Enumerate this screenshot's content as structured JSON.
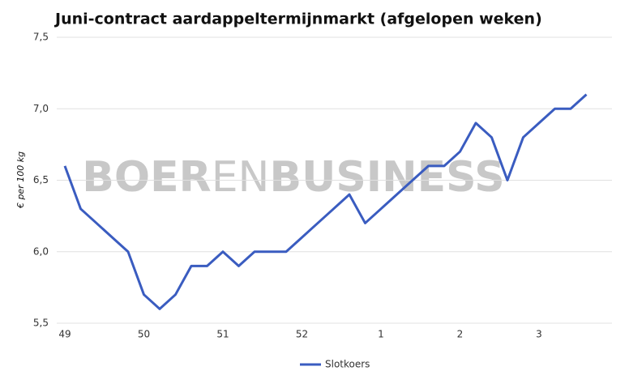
{
  "chart_data": {
    "type": "line",
    "title": "Juni-contract aardappeltermijnmarkt (afgelopen weken)",
    "y_label": "€ per 100 kg",
    "watermark": [
      "BOER",
      "EN",
      "BUSINESS"
    ],
    "categories": [
      "49",
      null,
      null,
      null,
      null,
      "50",
      null,
      null,
      null,
      null,
      "51",
      null,
      null,
      null,
      null,
      "52",
      null,
      null,
      null,
      null,
      "1",
      null,
      null,
      null,
      null,
      "2",
      null,
      null,
      null,
      null,
      "3",
      null,
      null,
      null
    ],
    "series": [
      {
        "name": "Slotkoers",
        "color": "#3a5cc0",
        "values": [
          6.6,
          6.3,
          6.2,
          6.1,
          6.0,
          5.7,
          5.6,
          5.7,
          5.9,
          5.9,
          6.0,
          5.9,
          6.0,
          6.0,
          6.0,
          6.1,
          6.2,
          6.3,
          6.4,
          6.2,
          6.3,
          6.4,
          6.5,
          6.6,
          6.6,
          6.7,
          6.9,
          6.8,
          6.5,
          6.8,
          6.9,
          7.0,
          7.0,
          7.1
        ]
      }
    ],
    "ylim": [
      5.5,
      7.5
    ],
    "yticks": [
      {
        "value": 5.5,
        "label": "5,5"
      },
      {
        "value": 6.0,
        "label": "6,0"
      },
      {
        "value": 6.5,
        "label": "6,5"
      },
      {
        "value": 7.0,
        "label": "7,0"
      },
      {
        "value": 7.5,
        "label": "7,5"
      }
    ],
    "grid": true,
    "legend": "bottom"
  }
}
